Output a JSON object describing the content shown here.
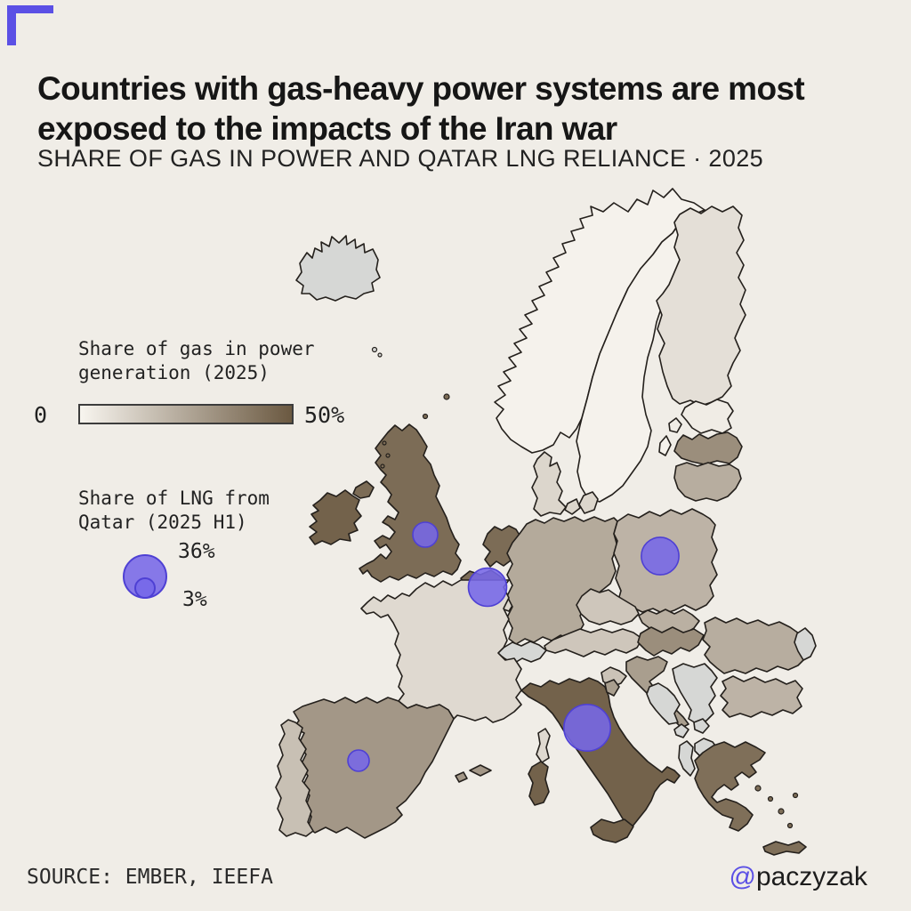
{
  "brand": {
    "accent": "#5b50e5"
  },
  "header": {
    "title_line1": "Countries with gas-heavy power systems are most",
    "title_line2": "exposed to the impacts of the Iran war",
    "subtitle": "SHARE OF GAS IN POWER AND QATAR LNG RELIANCE · 2025"
  },
  "legend_gas": {
    "title_line1": "Share of gas in power",
    "title_line2": "generation (2025)",
    "min_label": "0",
    "max_label": "50%"
  },
  "legend_lng": {
    "title_line1": "Share of LNG from",
    "title_line2": "Qatar (2025 H1)",
    "big_label": "36%",
    "big_value": 36,
    "small_label": "3%",
    "small_value": 3
  },
  "footer": {
    "source": "SOURCE: EMBER, IEEFA",
    "handle_at": "@",
    "handle_name": "paczyzak"
  },
  "chart_data": {
    "type": "choropleth_map_with_bubbles",
    "region": "Europe",
    "title": "Countries with gas-heavy power systems are most exposed to the impacts of the Iran war",
    "subtitle": "SHARE OF GAS IN POWER AND QATAR LNG RELIANCE · 2025",
    "source": "EMBER, IEEFA",
    "author_handle": "@paczyzak",
    "gas_share_in_power_pct": {
      "units": "%",
      "range": [
        0,
        50
      ],
      "values_estimated_from_shading": true,
      "color_scale": {
        "low": "#f8f5ef",
        "high": "#6b5941"
      },
      "no_data_color": "#d6d7d5",
      "values": {
        "Norway": 1,
        "Sweden": 1,
        "Finland": 7,
        "Estonia": 3,
        "Latvia": 33,
        "Lithuania": 23,
        "Denmark": 10,
        "United Kingdom": 44,
        "Ireland": 47,
        "Netherlands": 44,
        "Belgium": 44,
        "Luxembourg": 10,
        "Germany": 24,
        "Poland": 21,
        "France": 9,
        "Spain": 30,
        "Portugal": 17,
        "Italy": 47,
        "Austria": 15,
        "Czechia": 15,
        "Slovakia": 22,
        "Hungary": 33,
        "Slovenia": 16,
        "Croatia": 28,
        "Romania": 23,
        "Bulgaria": 21,
        "Greece": 43
      },
      "no_data": [
        "Iceland",
        "Switzerland",
        "Serbia",
        "Bosnia and Herzegovina",
        "Montenegro",
        "Kosovo",
        "North Macedonia",
        "Albania",
        "Moldova"
      ]
    },
    "qatar_lng_share_pct": {
      "units": "%",
      "period": "2025 H1",
      "values_estimated_from_bubble_size": true,
      "color": {
        "fill": "rgba(118,104,232,0.88)",
        "stroke": "#4e40d4"
      },
      "legend": {
        "max_value": 36,
        "max_radius_px": 25,
        "min_value": 3,
        "min_radius_px": 12
      },
      "bubbles": [
        {
          "country": "Italy",
          "value": 39
        },
        {
          "country": "Belgium",
          "value": 27
        },
        {
          "country": "Poland",
          "value": 26
        },
        {
          "country": "United Kingdom",
          "value": 8
        },
        {
          "country": "Spain",
          "value": 3
        }
      ]
    }
  }
}
